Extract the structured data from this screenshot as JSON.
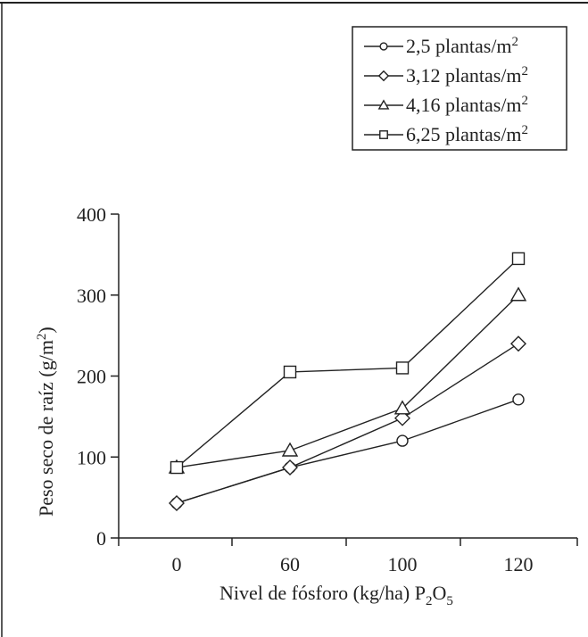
{
  "chart_data": {
    "type": "line",
    "categories": [
      "0",
      "60",
      "100",
      "120"
    ],
    "xlabel": {
      "main": "Nivel de fósforo (kg/ha) P",
      "sub1": "2",
      "mid": "O",
      "sub2": "5"
    },
    "ylabel": {
      "main": "Peso seco de raíz (g/m",
      "sup": "2",
      "end": ")"
    },
    "ylim": [
      0,
      400
    ],
    "yticks": [
      "0",
      "100",
      "200",
      "300",
      "400"
    ],
    "legend_position": "top-right",
    "legend_unit_sup": "2",
    "series": [
      {
        "name": "2,5 plantas/m",
        "marker": "circle",
        "values": [
          43,
          87,
          120,
          171
        ]
      },
      {
        "name": "3,12 plantas/m",
        "marker": "diamond",
        "values": [
          43,
          87,
          148,
          240
        ]
      },
      {
        "name": "4,16 plantas/m",
        "marker": "triangle",
        "values": [
          87,
          108,
          160,
          300
        ]
      },
      {
        "name": "6,25 plantas/m",
        "marker": "square",
        "values": [
          87,
          205,
          210,
          345
        ]
      }
    ]
  }
}
